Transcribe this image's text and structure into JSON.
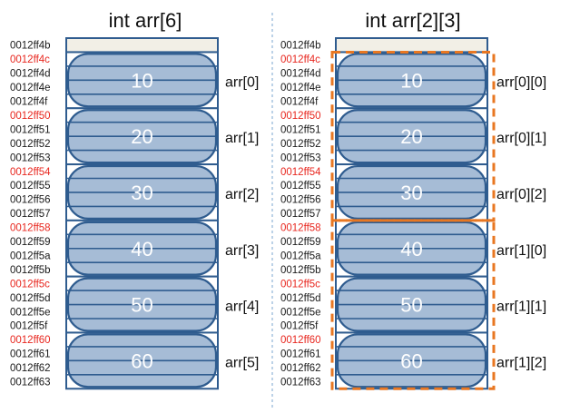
{
  "title_1d": "int arr[6]",
  "title_2d": "int arr[2][3]",
  "colors": {
    "address_normal": "#1a1a1a",
    "address_highlight": "#e8261e",
    "cell_stroke": "#2f5c8f",
    "pill_fill": "#a6bcd6",
    "header_fill": "#f2efe6",
    "value_text": "#ffffff",
    "outline_2d": "#e87722",
    "divider": "#7aa6cf"
  },
  "addresses": [
    {
      "text": "0012ff4b",
      "highlight": false
    },
    {
      "text": "0012ff4c",
      "highlight": true
    },
    {
      "text": "0012ff4d",
      "highlight": false
    },
    {
      "text": "0012ff4e",
      "highlight": false
    },
    {
      "text": "0012ff4f",
      "highlight": false
    },
    {
      "text": "0012ff50",
      "highlight": true
    },
    {
      "text": "0012ff51",
      "highlight": false
    },
    {
      "text": "0012ff52",
      "highlight": false
    },
    {
      "text": "0012ff53",
      "highlight": false
    },
    {
      "text": "0012ff54",
      "highlight": true
    },
    {
      "text": "0012ff55",
      "highlight": false
    },
    {
      "text": "0012ff56",
      "highlight": false
    },
    {
      "text": "0012ff57",
      "highlight": false
    },
    {
      "text": "0012ff58",
      "highlight": true
    },
    {
      "text": "0012ff59",
      "highlight": false
    },
    {
      "text": "0012ff5a",
      "highlight": false
    },
    {
      "text": "0012ff5b",
      "highlight": false
    },
    {
      "text": "0012ff5c",
      "highlight": true
    },
    {
      "text": "0012ff5d",
      "highlight": false
    },
    {
      "text": "0012ff5e",
      "highlight": false
    },
    {
      "text": "0012ff5f",
      "highlight": false
    },
    {
      "text": "0012ff60",
      "highlight": true
    },
    {
      "text": "0012ff61",
      "highlight": false
    },
    {
      "text": "0012ff62",
      "highlight": false
    },
    {
      "text": "0012ff63",
      "highlight": false
    }
  ],
  "values": [
    "10",
    "20",
    "30",
    "40",
    "50",
    "60"
  ],
  "labels_1d": [
    "arr[0]",
    "arr[1]",
    "arr[2]",
    "arr[3]",
    "arr[4]",
    "arr[5]"
  ],
  "labels_2d": [
    "arr[0][0]",
    "arr[0][1]",
    "arr[0][2]",
    "arr[1][0]",
    "arr[1][1]",
    "arr[1][2]"
  ]
}
